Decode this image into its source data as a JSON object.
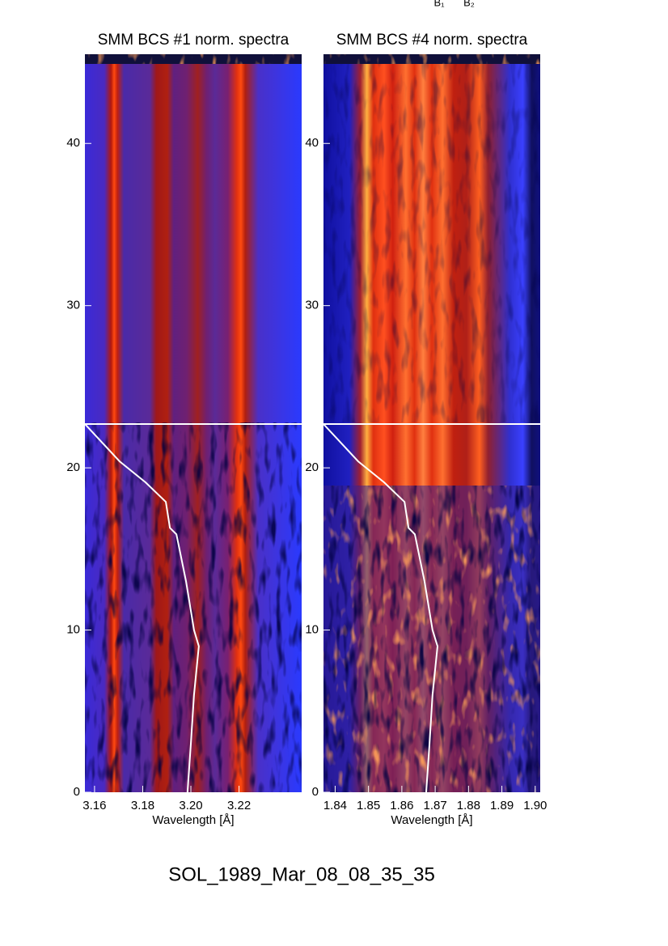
{
  "chart_data": [
    {
      "type": "heatmap",
      "title": "SMM BCS #1 norm. spectra",
      "x_label": "Wavelength [Å]",
      "xlim": [
        3.156,
        3.246
      ],
      "xticks": [
        3.16,
        3.18,
        {
          "value": 3.2,
          "label": "3.20"
        },
        3.22
      ],
      "ylim": [
        0,
        45.5
      ],
      "yticks": [
        0,
        10,
        20,
        30,
        40
      ],
      "series": [
        {
          "color": "#ffffff",
          "x": [
            3.246,
            3.156,
            3.1704,
            3.1812,
            3.1896,
            3.1913,
            3.194,
            3.198,
            3.2013,
            3.2033,
            3.2013,
            3.2,
            3.1986
          ],
          "values": [
            22.7,
            22.7,
            20.4,
            19.1,
            17.9,
            16.3,
            15.9,
            13,
            10,
            9,
            6,
            3,
            0
          ]
        }
      ]
    },
    {
      "type": "heatmap",
      "title": "SMM BCS #4 norm. spectra",
      "x_label": "Wavelength [Å]",
      "xlim": [
        1.8365,
        1.9015
      ],
      "xticks": [
        1.84,
        1.85,
        1.86,
        1.87,
        1.88,
        1.89,
        {
          "value": 1.9,
          "label": "1.90"
        }
      ],
      "ylim": [
        0,
        45.5
      ],
      "yticks": [
        0,
        10,
        20,
        30,
        40
      ],
      "series": [
        {
          "color": "#ffffff",
          "x": [
            1.9015,
            1.8365,
            1.8469,
            1.8547,
            1.8608,
            1.862,
            1.8639,
            1.8668,
            1.8692,
            1.8707,
            1.8692,
            1.8683,
            1.8673
          ],
          "values": [
            22.7,
            22.7,
            20.4,
            19.1,
            17.9,
            16.3,
            15.9,
            13,
            10,
            9,
            6,
            3,
            0
          ]
        }
      ]
    }
  ],
  "annotations": [
    "B₁",
    "B₂"
  ],
  "footer": "SOL_1989_Mar_08_08_35_35"
}
